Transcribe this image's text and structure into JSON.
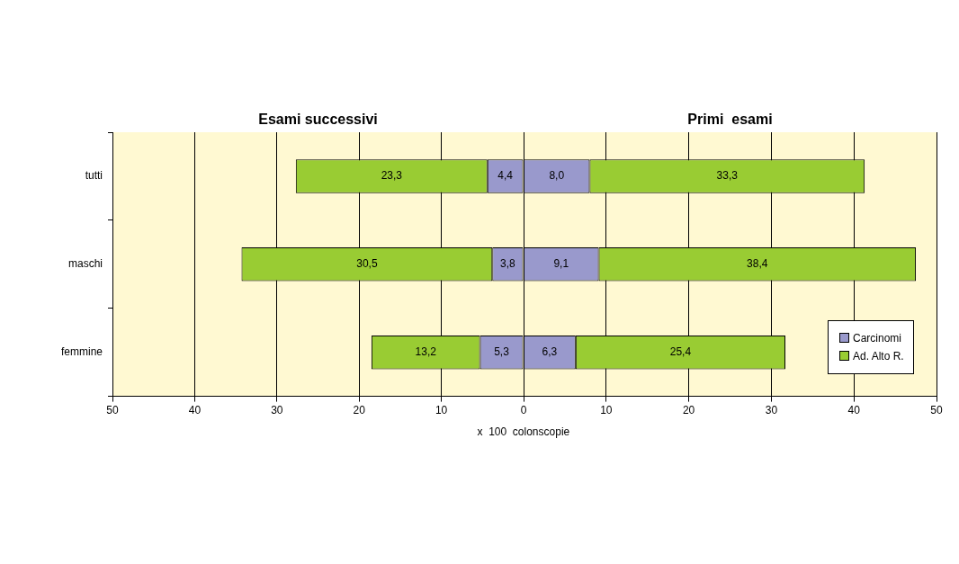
{
  "chart_data": [
    {
      "type": "bar",
      "orientation": "horizontal",
      "stacked": true,
      "title": "Esami successivi",
      "xlabel": "x  100  colonscopie",
      "categories": [
        "tutti",
        "maschi",
        "femmine"
      ],
      "series": [
        {
          "color": "#9999cc",
          "values": [
            4.4,
            3.8,
            5.3
          ],
          "value_labels": [
            "4,4",
            "3,8",
            "5,3"
          ]
        },
        {
          "color": "#99cc33",
          "values": [
            23.3,
            30.5,
            13.2
          ],
          "value_labels": [
            "23,3",
            "30,5",
            "13,2"
          ]
        }
      ],
      "xlim": [
        50,
        0
      ],
      "xticks": [
        50,
        40,
        30,
        20,
        10,
        0
      ],
      "grid": "x"
    },
    {
      "type": "bar",
      "orientation": "horizontal",
      "stacked": true,
      "title": "Primi  esami",
      "series": [
        {
          "name": "Carcinomi",
          "color": "#9999cc",
          "values": [
            8.0,
            9.1,
            6.3
          ],
          "value_labels": [
            "8,0",
            "9,1",
            "6,3"
          ]
        },
        {
          "name": "Ad. Alto  R.",
          "color": "#99cc33",
          "values": [
            33.3,
            38.4,
            25.4
          ],
          "value_labels": [
            "33,3",
            "38,4",
            "25,4"
          ]
        }
      ],
      "xlim": [
        0,
        50
      ],
      "xticks": [
        10,
        20,
        30,
        40,
        50
      ],
      "grid": "x",
      "tick_labels": "x",
      "legend": "bottom right"
    }
  ]
}
